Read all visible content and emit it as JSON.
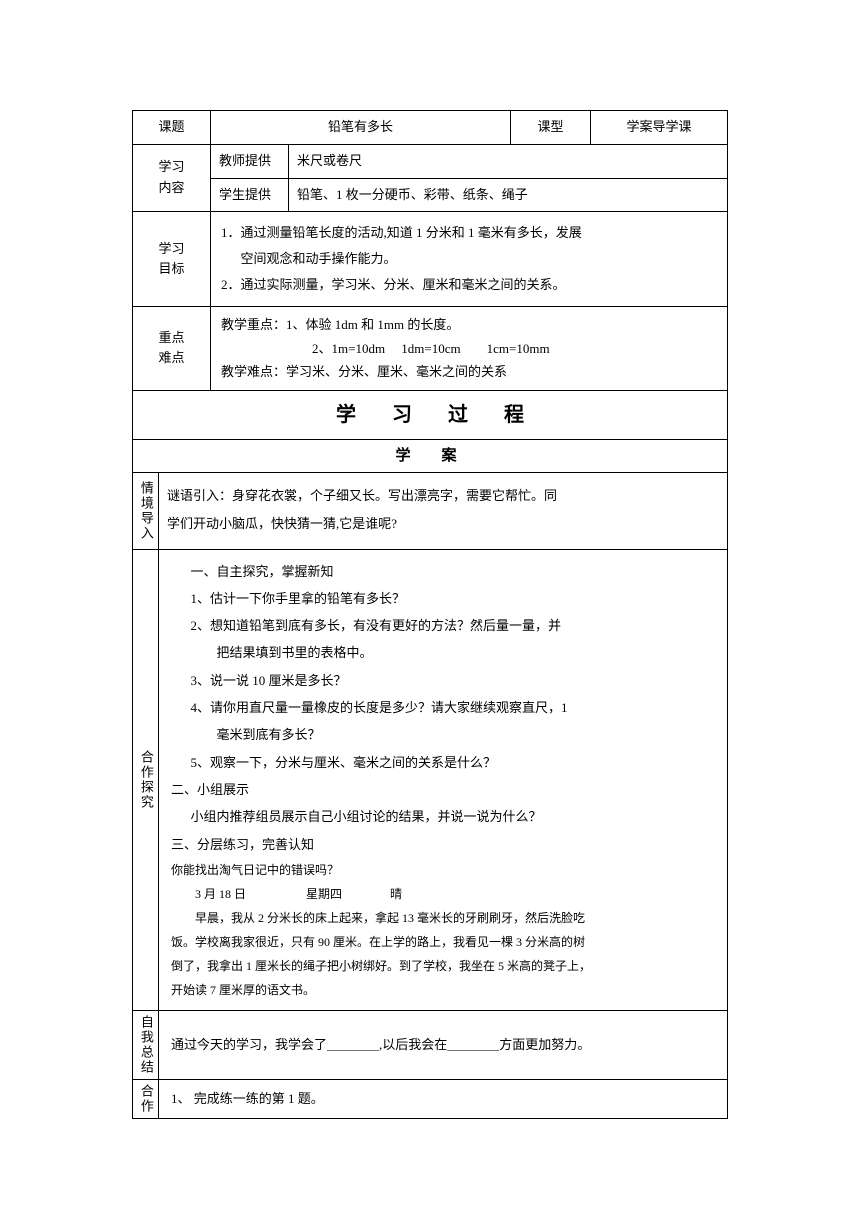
{
  "header": {
    "keti_label": "课题",
    "keti_value": "铅笔有多长",
    "kexing_label": "课型",
    "kexing_value": "学案导学课"
  },
  "xuexi_neirong": {
    "label": "学习\n内容",
    "teacher_label": "教师提供",
    "teacher_value": "米尺或卷尺",
    "student_label": "学生提供",
    "student_value": "铅笔、1 枚一分硬币、彩带、纸条、绳子"
  },
  "xuexi_mubiao": {
    "label": "学习\n目标",
    "line1": "1．通过测量铅笔长度的活动,知道 1 分米和 1 毫米有多长，发展",
    "line1b": "空间观念和动手操作能力。",
    "line2": "2．通过实际测量，学习米、分米、厘米和毫米之间的关系。"
  },
  "zhongdian": {
    "label": "重点\n难点",
    "line1": "教学重点：1、体验 1dm 和 1mm 的长度。",
    "line2": "　　　　　　　2、1m=10dm　 1dm=10cm　　1cm=10mm",
    "line3": "教学难点：学习米、分米、厘米、毫米之间的关系"
  },
  "process_title": "学习过程",
  "xuean_title": "学　案",
  "qingjing": {
    "label": "情境导入",
    "line1": "谜语引入：身穿花衣裳，个子细又长。写出漂亮字，需要它帮忙。同",
    "line2": "学们开动小脑瓜，快快猜一猜,它是谁呢?"
  },
  "hezuo": {
    "label": "合作探究",
    "h1": "一、自主探究，掌握新知",
    "q1": "1、估计一下你手里拿的铅笔有多长？",
    "q2a": "2、想知道铅笔到底有多长，有没有更好的方法？然后量一量，并",
    "q2b": "把结果填到书里的表格中。",
    "q3": "3、说一说 10 厘米是多长？",
    "q4a": "4、请你用直尺量一量橡皮的长度是多少？请大家继续观察直尺，1",
    "q4b": "毫米到底有多长？",
    "q5": "5、观察一下，分米与厘米、毫米之间的关系是什么？",
    "h2": "二、小组展示",
    "h2t": "小组内推荐组员展示自己小组讨论的结果，并说一说为什么？",
    "h3": "三、分层练习，完善认知",
    "h3t1": "你能找出淘气日记中的错误吗？",
    "h3t2": "　　3 月 18 日　　　　　星期四　　　　晴",
    "h3t3": "　　早晨，我从 2 分米长的床上起来，拿起 13 毫米长的牙刷刷牙，然后洗脸吃",
    "h3t4": "饭。学校离我家很近，只有 90 厘米。在上学的路上，我看见一棵 3 分米高的树",
    "h3t5": "倒了，我拿出 1 厘米长的绳子把小树绑好。到了学校，我坐在 5 米高的凳子上，",
    "h3t6": "开始读 7 厘米厚的语文书。"
  },
  "ziwo": {
    "label": "自我总结",
    "text": "通过今天的学习，我学会了＿＿＿＿,以后我会在＿＿＿＿方面更加努力。"
  },
  "hezuoxia": {
    "label": "合作",
    "text": "1、 完成练一练的第 1 题。"
  }
}
